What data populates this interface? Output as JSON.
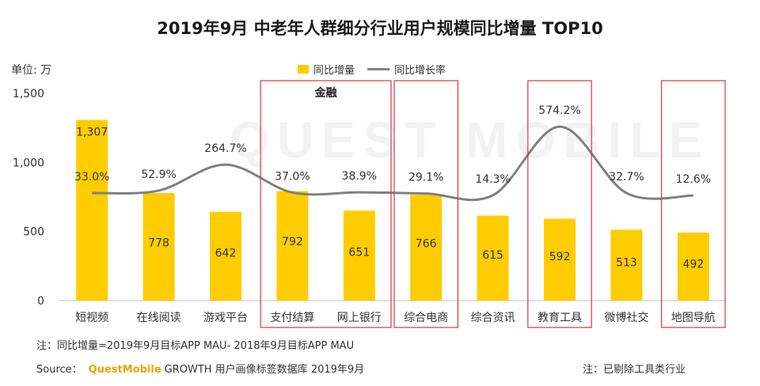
{
  "title": "2019年9月 中老年人群细分行业用户规模同比增量 TOP10",
  "y_unit_label": "单位: 万",
  "legend": {
    "bar_label": "同比增量",
    "line_label": "同比增长率"
  },
  "chart_data": {
    "type": "bar",
    "categories": [
      "短视频",
      "在线阅读",
      "游戏平台",
      "支付结算",
      "网上银行",
      "综合电商",
      "综合资讯",
      "教育工具",
      "微博社交",
      "地图导航"
    ],
    "series": [
      {
        "name": "同比增量",
        "type": "bar",
        "values": [
          1307,
          778,
          642,
          792,
          651,
          766,
          615,
          592,
          513,
          492
        ],
        "labels": [
          "1,307",
          "778",
          "642",
          "792",
          "651",
          "766",
          "615",
          "592",
          "513",
          "492"
        ]
      },
      {
        "name": "同比增长率",
        "type": "line",
        "values": [
          33.0,
          52.9,
          264.7,
          37.0,
          38.9,
          29.1,
          14.3,
          574.2,
          32.7,
          12.6
        ],
        "labels": [
          "33.0%",
          "52.9%",
          "264.7%",
          "37.0%",
          "38.9%",
          "29.1%",
          "14.3%",
          "574.2%",
          "32.7%",
          "12.6%"
        ]
      }
    ],
    "ylim": [
      0,
      1500
    ],
    "yticks": [
      0,
      500,
      1000,
      1500
    ],
    "ytick_labels": [
      "0",
      "500",
      "1,000",
      "1,500"
    ],
    "highlight_groups": [
      {
        "label": "金融",
        "categories": [
          "支付结算",
          "网上银行"
        ]
      },
      {
        "label": "",
        "categories": [
          "综合电商"
        ]
      },
      {
        "label": "",
        "categories": [
          "教育工具"
        ]
      },
      {
        "label": "",
        "categories": [
          "地图导航"
        ]
      }
    ],
    "colors": {
      "bar": "#FFCC00",
      "line": "#808080",
      "highlight": "#D9363E"
    }
  },
  "footnote": "注：同比增量=2019年9月目标APP MAU- 2018年9月目标APP MAU",
  "source": {
    "prefix": "Source：",
    "brand": "QuestMobile",
    "text": "GROWTH 用户画像标签数据库  2019年9月"
  },
  "note_right": "注：已剔除工具类行业",
  "watermark": "QUEST MOBILE"
}
